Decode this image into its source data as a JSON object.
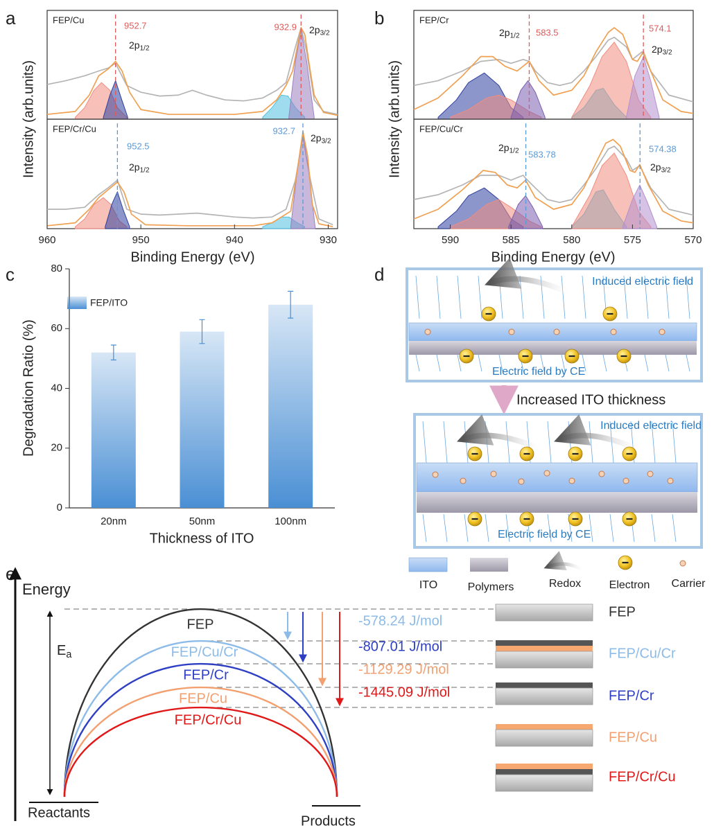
{
  "panel_labels": [
    "a",
    "b",
    "c",
    "d",
    "e"
  ],
  "chart_data": [
    {
      "type": "line",
      "title": "FEP/Cu",
      "ylabel": "Intensity (arb.units)",
      "xlim": [
        960,
        929
      ],
      "ylim": [
        0,
        1
      ],
      "series": [
        {
          "color": "#b4b4b4",
          "fill": false,
          "x": [
            960,
            958,
            956,
            954.5,
            953.5,
            952.7,
            951.5,
            950,
            948,
            946,
            944.5,
            943,
            941,
            939,
            937,
            935.5,
            934.5,
            933.5,
            932.9,
            932.3,
            931.5,
            930.5,
            929
          ],
          "values": [
            0.36,
            0.4,
            0.45,
            0.5,
            0.53,
            0.58,
            0.35,
            0.28,
            0.24,
            0.25,
            0.3,
            0.25,
            0.2,
            0.19,
            0.22,
            0.3,
            0.38,
            0.75,
            0.95,
            0.7,
            0.2,
            0.08,
            0.05
          ]
        },
        {
          "color": "#f08c80",
          "fill": true,
          "x": [
            957,
            956,
            955,
            954.2,
            953.3,
            952.5,
            951.5
          ],
          "values": [
            0.02,
            0.12,
            0.3,
            0.38,
            0.3,
            0.12,
            0.02
          ]
        },
        {
          "color": "#2f3f9e",
          "fill": true,
          "x": [
            954,
            953.3,
            952.7,
            952.1,
            951.4
          ],
          "values": [
            0.02,
            0.25,
            0.4,
            0.22,
            0.02
          ]
        },
        {
          "color": "#4fc0e0",
          "fill": true,
          "x": [
            937,
            936,
            935,
            934.3,
            933.5,
            932.5
          ],
          "values": [
            0.02,
            0.12,
            0.25,
            0.24,
            0.12,
            0.02
          ]
        },
        {
          "color": "#9a7fc0",
          "fill": true,
          "x": [
            934.2,
            933.5,
            932.9,
            932.3,
            931.5
          ],
          "values": [
            0.02,
            0.6,
            0.92,
            0.6,
            0.02
          ]
        },
        {
          "color": "#f0a050",
          "fill": false,
          "x": [
            960,
            957,
            955.5,
            954.5,
            953.5,
            952.7,
            952,
            951.2,
            950,
            947,
            940,
            937,
            935.5,
            934.5,
            933.8,
            933.2,
            932.9,
            932.5,
            932,
            931.5,
            930.5,
            929
          ],
          "values": [
            0.05,
            0.08,
            0.25,
            0.45,
            0.52,
            0.6,
            0.5,
            0.28,
            0.1,
            0.05,
            0.05,
            0.08,
            0.2,
            0.35,
            0.5,
            0.8,
            0.95,
            0.88,
            0.55,
            0.25,
            0.07,
            0.04
          ]
        }
      ],
      "annotations": [
        {
          "x": 952.7,
          "color": "#e05a5a"
        },
        {
          "x": 932.9,
          "color": "#e05a5a"
        }
      ],
      "peak_labels": [
        {
          "main": "2p",
          "sub": "1/2"
        },
        {
          "main": "2p",
          "sub": "3/2"
        }
      ]
    },
    {
      "type": "line",
      "title": "FEP/Cr/Cu",
      "xlabel": "Binding Energy (eV)",
      "xlim": [
        960,
        929
      ],
      "ylim": [
        0,
        1
      ],
      "xticks": [
        960,
        950,
        940,
        930
      ],
      "series": [
        {
          "color": "#b4b4b4",
          "fill": false,
          "x": [
            960,
            958,
            956,
            954.5,
            953.5,
            952.5,
            951.5,
            950,
            948,
            946,
            944,
            942,
            940,
            938,
            936,
            934.5,
            933.5,
            932.7,
            932,
            931,
            929.5
          ],
          "values": [
            0.2,
            0.2,
            0.22,
            0.35,
            0.42,
            0.5,
            0.2,
            0.15,
            0.14,
            0.15,
            0.16,
            0.14,
            0.12,
            0.11,
            0.12,
            0.2,
            0.5,
            0.95,
            0.55,
            0.1,
            0.04
          ]
        },
        {
          "color": "#f08c80",
          "fill": true,
          "x": [
            957,
            956,
            955,
            954,
            953.2,
            952.3,
            951.5
          ],
          "values": [
            0.02,
            0.1,
            0.25,
            0.32,
            0.25,
            0.08,
            0.02
          ]
        },
        {
          "color": "#2f3f9e",
          "fill": true,
          "x": [
            953.8,
            953.1,
            952.5,
            951.9,
            951.2
          ],
          "values": [
            0.02,
            0.25,
            0.38,
            0.2,
            0.02
          ]
        },
        {
          "color": "#4fc0e0",
          "fill": true,
          "x": [
            937,
            936,
            935,
            934.2,
            933.3,
            932.5
          ],
          "values": [
            0.02,
            0.06,
            0.12,
            0.12,
            0.06,
            0.02
          ]
        },
        {
          "color": "#9a7fc0",
          "fill": true,
          "x": [
            934,
            933.3,
            932.7,
            932.1,
            931.4
          ],
          "values": [
            0.02,
            0.6,
            0.98,
            0.6,
            0.02
          ]
        },
        {
          "color": "#f0a050",
          "fill": false,
          "x": [
            960,
            957,
            955.5,
            954.5,
            953.5,
            952.5,
            951.8,
            951,
            949.5,
            945,
            938,
            936,
            935,
            934,
            933.3,
            932.7,
            932.2,
            931.7,
            931,
            929.5
          ],
          "values": [
            0.03,
            0.06,
            0.2,
            0.32,
            0.4,
            0.48,
            0.38,
            0.15,
            0.04,
            0.03,
            0.03,
            0.06,
            0.12,
            0.18,
            0.6,
            1.0,
            0.75,
            0.25,
            0.05,
            0.02
          ]
        }
      ],
      "annotations": [
        {
          "x": 952.5,
          "color": "#5a9ad8"
        },
        {
          "x": 932.7,
          "color": "#5a9ad8"
        }
      ],
      "peak_labels": [
        {
          "main": "2p",
          "sub": "1/2"
        },
        {
          "main": "2p",
          "sub": "3/2"
        }
      ]
    },
    {
      "type": "line",
      "title": "FEP/Cr",
      "ylabel": "Intensity (arb.units)",
      "xlim": [
        593,
        570
      ],
      "ylim": [
        0,
        1
      ],
      "series": [
        {
          "color": "#b4b4b4",
          "fill": false,
          "x": [
            593,
            591,
            589,
            587.5,
            586,
            585,
            584,
            583.5,
            583,
            582,
            581,
            580,
            579,
            578,
            577,
            576.5,
            575.5,
            575,
            574.2,
            573.5,
            572,
            570
          ],
          "values": [
            0.35,
            0.4,
            0.5,
            0.6,
            0.62,
            0.58,
            0.62,
            0.6,
            0.5,
            0.38,
            0.35,
            0.38,
            0.5,
            0.65,
            0.82,
            0.85,
            0.75,
            0.62,
            0.7,
            0.5,
            0.25,
            0.18
          ]
        },
        {
          "color": "#2f3f9e",
          "fill": true,
          "x": [
            591,
            589.5,
            588.5,
            587.2,
            586,
            585,
            584
          ],
          "values": [
            0.02,
            0.2,
            0.38,
            0.48,
            0.35,
            0.12,
            0.02
          ]
        },
        {
          "color": "#f08c80",
          "fill": true,
          "x": [
            590,
            588.5,
            587,
            586,
            585,
            583.5,
            582.5
          ],
          "values": [
            0.02,
            0.1,
            0.22,
            0.25,
            0.2,
            0.08,
            0.02
          ]
        },
        {
          "color": "#7a5fb0",
          "fill": true,
          "x": [
            585,
            584.2,
            583.6,
            583,
            582.2
          ],
          "values": [
            0.02,
            0.3,
            0.4,
            0.28,
            0.02
          ]
        },
        {
          "color": "#4fc0e0",
          "fill": true,
          "x": [
            580,
            579,
            578,
            577.4,
            576.5,
            575.5
          ],
          "values": [
            0.02,
            0.12,
            0.3,
            0.32,
            0.15,
            0.02
          ]
        },
        {
          "color": "#f08c80",
          "fill": true,
          "x": [
            580,
            578.5,
            577.5,
            576.5,
            575.5,
            574.5,
            573.5
          ],
          "values": [
            0.02,
            0.35,
            0.65,
            0.8,
            0.6,
            0.2,
            0.02
          ]
        },
        {
          "color": "#b48fd0",
          "fill": true,
          "x": [
            575.5,
            574.8,
            574.1,
            573.5,
            572.8
          ],
          "values": [
            0.02,
            0.45,
            0.65,
            0.4,
            0.02
          ]
        },
        {
          "color": "#f0a050",
          "fill": false,
          "x": [
            593,
            591,
            589,
            587.5,
            586.5,
            585.5,
            584.5,
            583.5,
            582.7,
            581.5,
            580,
            579,
            578,
            577,
            576.5,
            575.8,
            575,
            574.6,
            574.1,
            573.5,
            572.5,
            571,
            570
          ],
          "values": [
            0.1,
            0.22,
            0.45,
            0.65,
            0.65,
            0.55,
            0.5,
            0.6,
            0.4,
            0.25,
            0.3,
            0.45,
            0.7,
            0.9,
            0.95,
            0.88,
            0.62,
            0.6,
            0.7,
            0.5,
            0.2,
            0.08,
            0.06
          ]
        }
      ],
      "annotations": [
        {
          "x": 583.5,
          "color": "#e05a5a"
        },
        {
          "x": 574.1,
          "color": "#e05a5a"
        }
      ],
      "peak_labels": [
        {
          "main": "2p",
          "sub": "1/2"
        },
        {
          "main": "2p",
          "sub": "3/2"
        }
      ]
    },
    {
      "type": "line",
      "title": "FEP/Cu/Cr",
      "xlabel": "Binding Energy (eV)",
      "xlim": [
        593,
        570
      ],
      "ylim": [
        0,
        1
      ],
      "xticks": [
        590,
        585,
        580,
        575,
        570
      ],
      "series": [
        {
          "color": "#b4b4b4",
          "fill": false,
          "x": [
            593,
            591,
            589,
            587.5,
            586,
            585,
            584,
            583.8,
            583,
            582,
            581,
            580,
            579,
            578,
            577,
            576.5,
            575.5,
            575,
            574.4,
            573.5,
            572,
            570
          ],
          "values": [
            0.3,
            0.35,
            0.45,
            0.55,
            0.55,
            0.5,
            0.55,
            0.52,
            0.42,
            0.3,
            0.27,
            0.3,
            0.45,
            0.62,
            0.82,
            0.85,
            0.72,
            0.6,
            0.65,
            0.42,
            0.2,
            0.14
          ]
        },
        {
          "color": "#2f3f9e",
          "fill": true,
          "x": [
            591,
            589.5,
            588.5,
            587.2,
            586,
            585,
            584
          ],
          "values": [
            0.02,
            0.18,
            0.34,
            0.42,
            0.3,
            0.1,
            0.02
          ]
        },
        {
          "color": "#f08c80",
          "fill": true,
          "x": [
            590,
            588.5,
            587,
            586,
            585,
            583.5,
            582.5
          ],
          "values": [
            0.02,
            0.1,
            0.25,
            0.3,
            0.22,
            0.08,
            0.02
          ]
        },
        {
          "color": "#7a5fb0",
          "fill": true,
          "x": [
            585.2,
            584.4,
            583.8,
            583.2,
            582.4
          ],
          "values": [
            0.02,
            0.25,
            0.34,
            0.22,
            0.02
          ]
        },
        {
          "color": "#4fc0e0",
          "fill": true,
          "x": [
            580,
            579,
            578,
            577.4,
            576.5,
            575.5
          ],
          "values": [
            0.02,
            0.15,
            0.38,
            0.4,
            0.2,
            0.02
          ]
        },
        {
          "color": "#f08c80",
          "fill": true,
          "x": [
            580,
            578.5,
            577.5,
            576.5,
            575.5,
            574.5,
            573.5
          ],
          "values": [
            0.02,
            0.35,
            0.65,
            0.78,
            0.55,
            0.18,
            0.02
          ]
        },
        {
          "color": "#b48fd0",
          "fill": true,
          "x": [
            575.8,
            575,
            574.4,
            573.8,
            573
          ],
          "values": [
            0.02,
            0.3,
            0.45,
            0.28,
            0.02
          ]
        },
        {
          "color": "#f0a050",
          "fill": false,
          "x": [
            593,
            591,
            589,
            587.3,
            586.3,
            585.3,
            584.5,
            583.8,
            583,
            581.5,
            580,
            579,
            578,
            577.2,
            576.6,
            576,
            575.2,
            574.8,
            574.4,
            573.7,
            572.5,
            571,
            570
          ],
          "values": [
            0.1,
            0.2,
            0.4,
            0.6,
            0.58,
            0.45,
            0.42,
            0.5,
            0.32,
            0.2,
            0.25,
            0.42,
            0.68,
            0.88,
            0.92,
            0.85,
            0.6,
            0.58,
            0.66,
            0.45,
            0.18,
            0.08,
            0.06
          ]
        }
      ],
      "annotations": [
        {
          "x": 583.78,
          "color": "#5a9ad8"
        },
        {
          "x": 574.38,
          "color": "#5a9ad8"
        }
      ],
      "peak_labels": [
        {
          "main": "2p",
          "sub": "1/2"
        },
        {
          "main": "2p",
          "sub": "3/2"
        }
      ]
    },
    {
      "type": "bar",
      "xlabel": "Thickness of ITO",
      "ylabel": "Degradation Ratio (%)",
      "categories": [
        "20nm",
        "50nm",
        "100nm"
      ],
      "ylim": [
        0,
        80
      ],
      "yticks": [
        0,
        20,
        40,
        60,
        80
      ],
      "series": [
        {
          "name": "FEP/ITO",
          "color": "#4a8fd4",
          "values": [
            52,
            59,
            68
          ],
          "errors": [
            2.5,
            4,
            4.5
          ]
        }
      ]
    }
  ],
  "diagram_d": {
    "top": {
      "induced": "Induced electric field",
      "ce": "Electric field by CE"
    },
    "arrow_label": "Increased ITO thickness",
    "bottom": {
      "induced": "Induced electric field",
      "ce": "Electric field by CE"
    },
    "legend": [
      "ITO",
      "Polymers",
      "Redox",
      "Electron",
      "Carrier"
    ]
  },
  "diagram_e": {
    "axis": "Energy",
    "ea": {
      "main": "E",
      "sub": "a"
    },
    "reactants": "Reactants",
    "products": "Products",
    "curves": [
      {
        "label": "FEP",
        "color": "#333333"
      },
      {
        "label": "FEP/Cu/Cr",
        "color": "#8cbbe8"
      },
      {
        "label": "FEP/Cr",
        "color": "#2e3fc4"
      },
      {
        "label": "FEP/Cu",
        "color": "#f2a070"
      },
      {
        "label": "FEP/Cr/Cu",
        "color": "#e01818"
      }
    ],
    "energies": [
      {
        "text": "-578.24 J/mol",
        "color": "#8cbbe8"
      },
      {
        "text": "-807.01 J/mol",
        "color": "#2e3fc4"
      },
      {
        "text": "-1129.29 J/mol",
        "color": "#f2a070"
      },
      {
        "text": "-1445.09 J/mol",
        "color": "#e01818"
      }
    ],
    "stacks": [
      {
        "label": "FEP",
        "color": "#333333"
      },
      {
        "label": "FEP/Cu/Cr",
        "color": "#8cbbe8"
      },
      {
        "label": "FEP/Cr",
        "color": "#2e3fc4"
      },
      {
        "label": "FEP/Cu",
        "color": "#f2a070"
      },
      {
        "label": "FEP/Cr/Cu",
        "color": "#e01818"
      }
    ]
  }
}
